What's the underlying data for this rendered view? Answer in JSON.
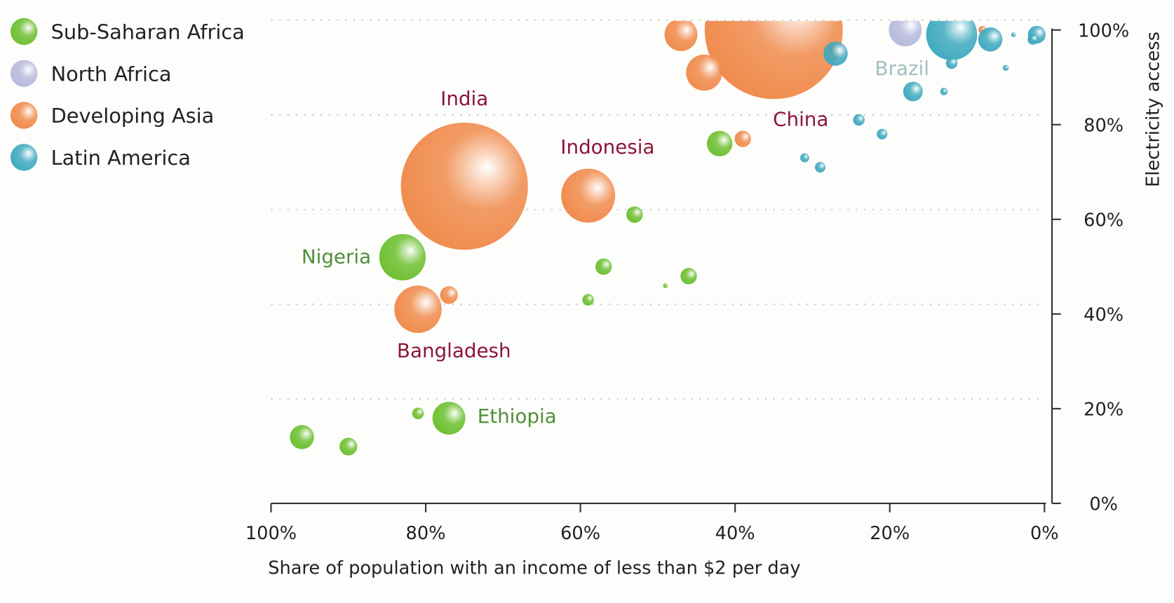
{
  "chart_data": {
    "type": "scatter",
    "subtype": "bubble",
    "xlabel": "Share of population with an income of less than $2 per day",
    "ylabel": "Electricity access",
    "xlim": [
      100,
      0
    ],
    "ylim": [
      0,
      100
    ],
    "x_ticks": [
      "100%",
      "80%",
      "60%",
      "40%",
      "20%",
      "0%"
    ],
    "x_tick_values": [
      100,
      80,
      60,
      40,
      20,
      0
    ],
    "y_ticks": [
      "0%",
      "20%",
      "40%",
      "60%",
      "80%",
      "100%"
    ],
    "y_tick_values": [
      0,
      20,
      40,
      60,
      80,
      100
    ],
    "grid": "horizontal dotted",
    "legend_position": "top-left",
    "series": [
      {
        "name": "Sub-Saharan Africa",
        "color": "#6cbf2f",
        "points": [
          {
            "x": 83,
            "y": 52,
            "size": 9.6,
            "label": "Nigeria",
            "label_color": "#4f8f3a"
          },
          {
            "x": 77,
            "y": 18,
            "size": 4.8,
            "label": "Ethiopia",
            "label_color": "#4f8f3a"
          },
          {
            "x": 81,
            "y": 19,
            "size": 0.6
          },
          {
            "x": 96,
            "y": 14,
            "size": 2.6
          },
          {
            "x": 90,
            "y": 12,
            "size": 1.4
          },
          {
            "x": 42,
            "y": 76,
            "size": 2.9
          },
          {
            "x": 53,
            "y": 61,
            "size": 1.2
          },
          {
            "x": 57,
            "y": 50,
            "size": 1.2
          },
          {
            "x": 59,
            "y": 43,
            "size": 0.6
          },
          {
            "x": 46,
            "y": 48,
            "size": 1.2
          },
          {
            "x": 49,
            "y": 46,
            "size": 0.1
          }
        ]
      },
      {
        "name": "North Africa",
        "color": "#b7b9dc",
        "points": [
          {
            "x": 18,
            "y": 100,
            "size": 4.8
          }
        ]
      },
      {
        "name": "Developing Asia",
        "color": "#f08a4b",
        "points": [
          {
            "x": 75,
            "y": 67,
            "size": 72,
            "label": "India",
            "label_color": "#8b1538"
          },
          {
            "x": 59,
            "y": 65,
            "size": 13,
            "label": "Indonesia",
            "label_color": "#8b1538"
          },
          {
            "x": 81,
            "y": 41,
            "size": 10,
            "label": "Bangladesh",
            "label_color": "#8b1538"
          },
          {
            "x": 35,
            "y": 100,
            "size": 85,
            "label": "China",
            "label_color": "#8b1538"
          },
          {
            "x": 77,
            "y": 44,
            "size": 1.4
          },
          {
            "x": 47,
            "y": 99,
            "size": 4.8
          },
          {
            "x": 44,
            "y": 91,
            "size": 5.8
          },
          {
            "x": 39,
            "y": 77,
            "size": 1.2
          },
          {
            "x": 8,
            "y": 100,
            "size": 0.3
          }
        ]
      },
      {
        "name": "Latin America",
        "color": "#3fa9bf",
        "points": [
          {
            "x": 12,
            "y": 99,
            "size": 11.6,
            "label": "Brazil",
            "label_color": "#9fbfc0"
          },
          {
            "x": 27,
            "y": 95,
            "size": 2.6
          },
          {
            "x": 7,
            "y": 98,
            "size": 2.6
          },
          {
            "x": 17,
            "y": 87,
            "size": 1.7
          },
          {
            "x": 12,
            "y": 93,
            "size": 0.6
          },
          {
            "x": 13,
            "y": 87,
            "size": 0.25
          },
          {
            "x": 24,
            "y": 81,
            "size": 0.6
          },
          {
            "x": 21,
            "y": 78,
            "size": 0.5
          },
          {
            "x": 31,
            "y": 73,
            "size": 0.36
          },
          {
            "x": 29,
            "y": 71,
            "size": 0.5
          },
          {
            "x": 1,
            "y": 99,
            "size": 1.4
          },
          {
            "x": 1.5,
            "y": 98,
            "size": 0.5
          },
          {
            "x": 5,
            "y": 92,
            "size": 0.16
          },
          {
            "x": 4,
            "y": 99,
            "size": 0.1
          }
        ]
      }
    ]
  }
}
